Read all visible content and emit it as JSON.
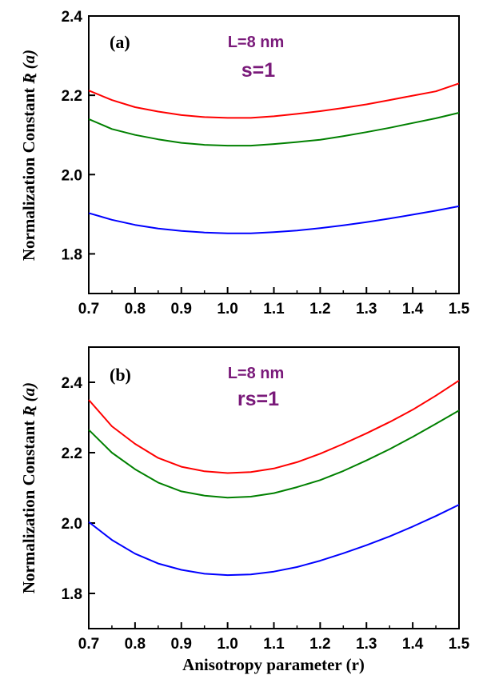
{
  "chart_data": [
    {
      "type": "line",
      "panel_label": "(a)",
      "annotations": [
        "L=8 nm",
        "s=1"
      ],
      "ylabel_text": "Normalization Constant ",
      "ylabel_symbol": "Ʀ (a)",
      "xlim": [
        0.7,
        1.5
      ],
      "ylim": [
        1.7,
        2.4
      ],
      "xticks": [
        "0.7",
        "0.8",
        "0.9",
        "1.0",
        "1.1",
        "1.2",
        "1.3",
        "1.4",
        "1.5"
      ],
      "yticks": [
        "1.8",
        "2.0",
        "2.2",
        "2.4"
      ],
      "x": [
        0.7,
        0.75,
        0.8,
        0.85,
        0.9,
        0.95,
        1.0,
        1.05,
        1.1,
        1.15,
        1.2,
        1.25,
        1.3,
        1.35,
        1.4,
        1.45,
        1.5
      ],
      "series": [
        {
          "color": "#ff0000",
          "values": [
            2.212,
            2.188,
            2.17,
            2.159,
            2.15,
            2.145,
            2.143,
            2.143,
            2.147,
            2.153,
            2.16,
            2.168,
            2.177,
            2.188,
            2.199,
            2.21,
            2.23
          ]
        },
        {
          "color": "#008000",
          "values": [
            2.14,
            2.115,
            2.1,
            2.089,
            2.08,
            2.075,
            2.073,
            2.073,
            2.077,
            2.082,
            2.088,
            2.097,
            2.107,
            2.118,
            2.13,
            2.142,
            2.156
          ]
        },
        {
          "color": "#0000ff",
          "values": [
            1.903,
            1.886,
            1.873,
            1.864,
            1.858,
            1.854,
            1.852,
            1.852,
            1.855,
            1.859,
            1.865,
            1.872,
            1.88,
            1.889,
            1.899,
            1.909,
            1.92
          ]
        }
      ]
    },
    {
      "type": "line",
      "panel_label": "(b)",
      "annotations": [
        "L=8 nm",
        "rs=1"
      ],
      "ylabel_text": "Normalization Constant ",
      "ylabel_symbol": "Ʀ (a)",
      "xlim": [
        0.7,
        1.5
      ],
      "ylim": [
        1.7,
        2.5
      ],
      "xticks": [
        "0.7",
        "0.8",
        "0.9",
        "1.0",
        "1.1",
        "1.2",
        "1.3",
        "1.4",
        "1.5"
      ],
      "yticks": [
        "1.8",
        "2.0",
        "2.2",
        "2.4"
      ],
      "x": [
        0.7,
        0.75,
        0.8,
        0.85,
        0.9,
        0.95,
        1.0,
        1.05,
        1.1,
        1.15,
        1.2,
        1.25,
        1.3,
        1.35,
        1.4,
        1.45,
        1.5
      ],
      "series": [
        {
          "color": "#ff0000",
          "values": [
            2.35,
            2.275,
            2.225,
            2.185,
            2.16,
            2.147,
            2.142,
            2.145,
            2.155,
            2.173,
            2.197,
            2.225,
            2.255,
            2.287,
            2.322,
            2.362,
            2.405
          ]
        },
        {
          "color": "#008000",
          "values": [
            2.265,
            2.2,
            2.153,
            2.115,
            2.09,
            2.078,
            2.072,
            2.075,
            2.085,
            2.102,
            2.122,
            2.148,
            2.178,
            2.21,
            2.245,
            2.282,
            2.32
          ]
        },
        {
          "color": "#0000ff",
          "values": [
            2.003,
            1.952,
            1.913,
            1.885,
            1.867,
            1.856,
            1.852,
            1.854,
            1.862,
            1.875,
            1.893,
            1.914,
            1.937,
            1.962,
            1.99,
            2.02,
            2.052
          ]
        }
      ]
    }
  ],
  "xlabel": "Anisotropy parameter (r)"
}
